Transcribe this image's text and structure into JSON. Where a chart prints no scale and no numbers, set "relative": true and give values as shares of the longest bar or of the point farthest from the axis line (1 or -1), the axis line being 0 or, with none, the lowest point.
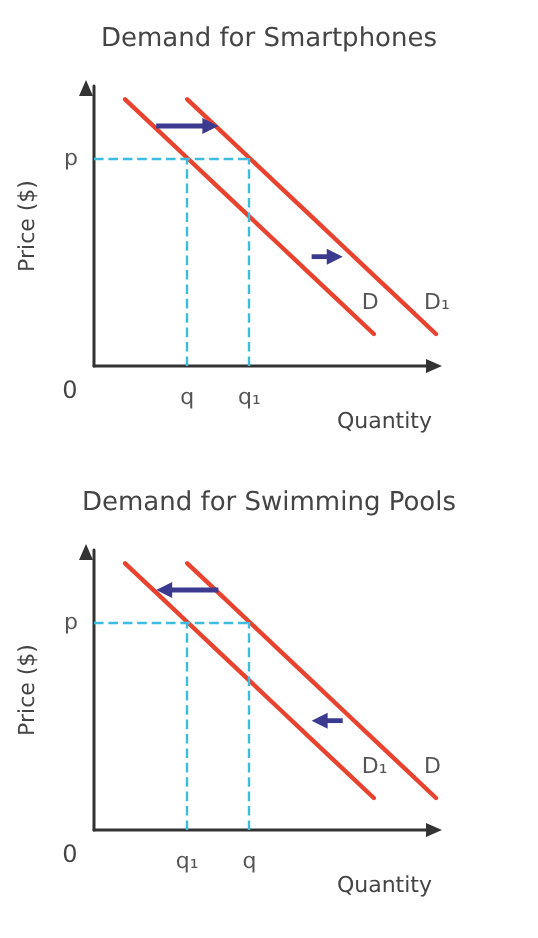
{
  "chart_data": [
    {
      "type": "line",
      "title": "Demand for Smartphones",
      "xlabel": "Quantity",
      "ylabel": "Price ($)",
      "relative": true,
      "grid": false,
      "legend": false,
      "marker": "none",
      "line_style": "solid",
      "categories": [
        null,
        null,
        null,
        "q",
        null,
        "q₁",
        null,
        null,
        null,
        null,
        null,
        null
      ],
      "series": [
        {
          "name": "D",
          "color": "#e8432e",
          "values": [
            null,
            1,
            0.89,
            0.78,
            0.67,
            0.56,
            0.45,
            0.34,
            0.23,
            0.12,
            null,
            null
          ]
        },
        {
          "name": "D₁",
          "color": "#e8432e",
          "values": [
            null,
            null,
            null,
            1,
            0.89,
            0.78,
            0.67,
            0.56,
            0.45,
            0.34,
            0.23,
            0.12
          ]
        }
      ],
      "ref_lines": [
        {
          "axis": "y",
          "value": 0.78,
          "label": "p",
          "color": "#3cbde0",
          "line_style": "dashed"
        },
        {
          "axis": "x",
          "value": "q",
          "color": "#3cbde0",
          "line_style": "dashed"
        },
        {
          "axis": "x",
          "value": "q₁",
          "color": "#3cbde0",
          "line_style": "dashed"
        }
      ],
      "annotations": [
        "0"
      ]
    },
    {
      "type": "line",
      "title": "Demand for Swimming Pools",
      "xlabel": "Quantity",
      "ylabel": "Price ($)",
      "relative": true,
      "grid": false,
      "legend": false,
      "marker": "none",
      "line_style": "solid",
      "categories": [
        null,
        null,
        null,
        "q₁",
        null,
        "q",
        null,
        null,
        null,
        null,
        null,
        null
      ],
      "series": [
        {
          "name": "D",
          "color": "#e8432e",
          "values": [
            null,
            null,
            null,
            1,
            0.89,
            0.78,
            0.67,
            0.56,
            0.45,
            0.34,
            0.23,
            0.12
          ]
        },
        {
          "name": "D₁",
          "color": "#e8432e",
          "values": [
            null,
            1,
            0.89,
            0.78,
            0.67,
            0.56,
            0.45,
            0.34,
            0.23,
            0.12,
            null,
            null
          ]
        }
      ],
      "ref_lines": [
        {
          "axis": "y",
          "value": 0.78,
          "label": "p",
          "color": "#3cbde0",
          "line_style": "dashed"
        },
        {
          "axis": "x",
          "value": "q₁",
          "color": "#3cbde0",
          "line_style": "dashed"
        },
        {
          "axis": "x",
          "value": "q",
          "color": "#3cbde0",
          "line_style": "dashed"
        }
      ],
      "annotations": [
        "0"
      ]
    }
  ]
}
